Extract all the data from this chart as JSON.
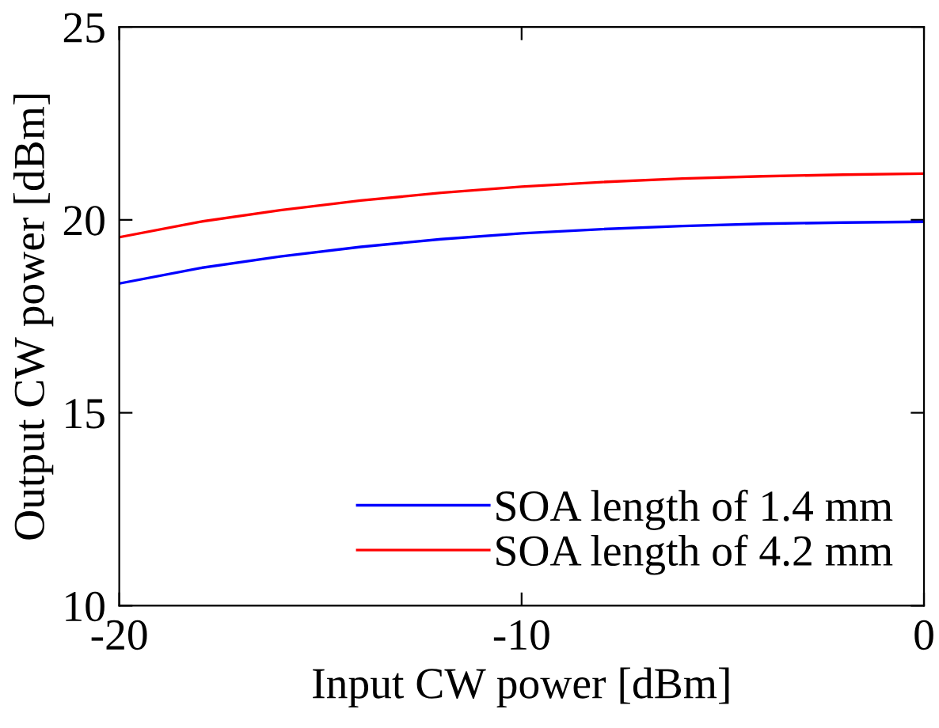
{
  "chart_data": {
    "type": "line",
    "xlabel": "Input CW power [dBm]",
    "ylabel": "Output CW power [dBm]",
    "x": [
      -20,
      -18,
      -16,
      -14,
      -12,
      -10,
      -8,
      -6,
      -4,
      -2,
      0
    ],
    "series": [
      {
        "name": "SOA length of 1.4 mm",
        "color": "#0000ff",
        "values": [
          18.35,
          18.75,
          19.05,
          19.3,
          19.5,
          19.65,
          19.76,
          19.84,
          19.9,
          19.93,
          19.95
        ]
      },
      {
        "name": "SOA length of 4.2 mm",
        "color": "#ff0000",
        "values": [
          19.55,
          19.95,
          20.25,
          20.5,
          20.7,
          20.86,
          20.98,
          21.07,
          21.13,
          21.17,
          21.2
        ]
      }
    ],
    "xlim": [
      -20,
      0
    ],
    "xticks": [
      -20,
      -10,
      0
    ],
    "ylim": [
      10,
      25
    ],
    "yticks": [
      10,
      15,
      20,
      25
    ],
    "grid": false,
    "legend": "bottom right",
    "line_style": "solid",
    "marker": "none"
  }
}
